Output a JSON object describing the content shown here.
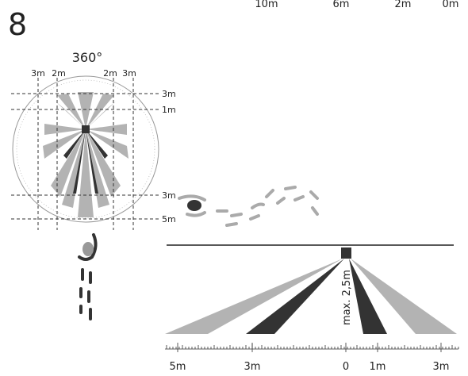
{
  "figure": {
    "number": "8",
    "top_scale": [
      "10m",
      "6m",
      "2m",
      "0m"
    ],
    "plan": {
      "angle_label": "360°",
      "top_labels": [
        "3m",
        "2m",
        "2m",
        "3m"
      ],
      "right_labels": [
        "3m",
        "1m",
        "3m",
        "5m"
      ]
    },
    "side": {
      "height_label": "max. 2,5m",
      "axis_labels": [
        "5m",
        "3m",
        "0",
        "1m",
        "3m"
      ]
    },
    "colors": {
      "zone_light": "#b3b3b3",
      "zone_dark": "#333333",
      "footprints": "#8a8a8a",
      "line": "#222222"
    }
  }
}
